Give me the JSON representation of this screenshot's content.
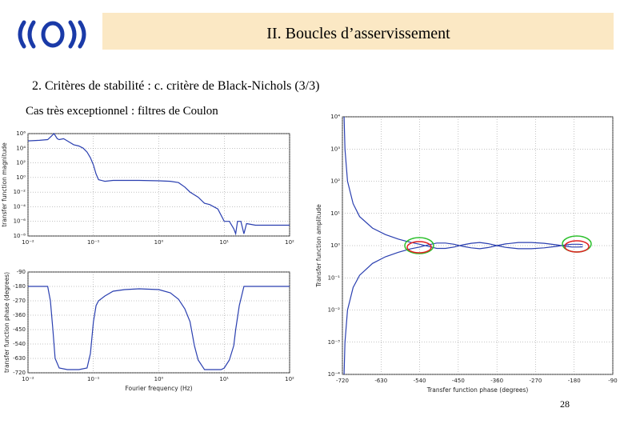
{
  "header": {
    "title": "II. Boucles d’asservissement"
  },
  "subtitle": "2. Critères de stabilité : c. critère de Black-Nichols (3/3)",
  "subheading": "Cas très exceptionnel : filtres de Coulon",
  "page_number": "28",
  "chart_data": [
    {
      "type": "line",
      "ylabel": "transfer function magnitude",
      "xscale": "log",
      "yscale": "log",
      "grid": true,
      "x": [
        0.01,
        0.015,
        0.02,
        0.023,
        0.025,
        0.028,
        0.03,
        0.035,
        0.04,
        0.05,
        0.06,
        0.07,
        0.08,
        0.09,
        0.1,
        0.11,
        0.12,
        0.15,
        0.2,
        0.3,
        0.5,
        1,
        1.5,
        2,
        2.5,
        3,
        4,
        5,
        6,
        8,
        10,
        12,
        14,
        15,
        16,
        18,
        20,
        22,
        30,
        50,
        100
      ],
      "series": [
        {
          "color": "#2a3fb0",
          "values": [
            100000,
            120000,
            150000,
            500000,
            1000000,
            200000,
            150000,
            200000,
            100000,
            30000,
            20000,
            10000,
            3000,
            500,
            50,
            3,
            0.5,
            0.3,
            0.4,
            0.4,
            0.4,
            0.35,
            0.3,
            0.2,
            0.05,
            0.01,
            0.002,
            0.0003,
            0.0002,
            5e-05,
            1e-06,
            1e-06,
            1e-07,
            2e-08,
            1e-06,
            1e-06,
            2e-08,
            5e-07,
            3e-07,
            3e-07,
            3e-07
          ]
        }
      ],
      "xlim": [
        0.01,
        100
      ],
      "xticks": [
        {
          "value": 0.01,
          "label": "10⁻²"
        },
        {
          "value": 0.1,
          "label": "10⁻¹"
        },
        {
          "value": 1,
          "label": "10⁰"
        },
        {
          "value": 10,
          "label": "10¹"
        },
        {
          "value": 100,
          "label": "10²"
        }
      ],
      "ylim": [
        1e-08,
        1000000
      ],
      "yticks": [
        {
          "value": 1e-08,
          "label": "10⁻⁸"
        },
        {
          "value": 1e-06,
          "label": "10⁻⁶"
        },
        {
          "value": 0.0001,
          "label": "10⁻⁴"
        },
        {
          "value": 0.01,
          "label": "10⁻²"
        },
        {
          "value": 1,
          "label": "10⁰"
        },
        {
          "value": 100,
          "label": "10²"
        },
        {
          "value": 10000,
          "label": "10⁴"
        },
        {
          "value": 1000000,
          "label": "10⁶"
        }
      ]
    },
    {
      "type": "line",
      "xlabel": "Fourier frequency (Hz)",
      "ylabel": "transfer function phase (degrees)",
      "xscale": "log",
      "grid": true,
      "x": [
        0.01,
        0.015,
        0.02,
        0.022,
        0.024,
        0.026,
        0.03,
        0.04,
        0.06,
        0.08,
        0.09,
        0.1,
        0.11,
        0.12,
        0.15,
        0.2,
        0.3,
        0.5,
        1,
        1.5,
        2,
        2.5,
        3,
        3.5,
        4,
        5,
        7,
        9,
        10,
        12,
        14,
        15,
        17,
        20,
        30,
        50,
        100
      ],
      "series": [
        {
          "color": "#2a3fb0",
          "values": [
            -180,
            -180,
            -180,
            -270,
            -450,
            -630,
            -690,
            -700,
            -700,
            -690,
            -600,
            -400,
            -300,
            -270,
            -240,
            -210,
            -200,
            -195,
            -200,
            -220,
            -260,
            -320,
            -400,
            -550,
            -640,
            -700,
            -700,
            -700,
            -690,
            -640,
            -550,
            -450,
            -300,
            -180,
            -180,
            -180,
            -180
          ]
        }
      ],
      "xlim": [
        0.01,
        100
      ],
      "xticks": [
        {
          "value": 0.01,
          "label": "10⁻²"
        },
        {
          "value": 0.1,
          "label": "10⁻¹"
        },
        {
          "value": 1,
          "label": "10⁰"
        },
        {
          "value": 10,
          "label": "10¹"
        },
        {
          "value": 100,
          "label": "10²"
        }
      ],
      "ylim": [
        -720,
        -90
      ],
      "yticks": [
        -720,
        -630,
        -540,
        -450,
        -360,
        -270,
        -180,
        -90
      ]
    },
    {
      "type": "line",
      "xlabel": "Transfer function phase (degrees)",
      "ylabel": "Transfer function amplitude",
      "yscale": "log",
      "grid": true,
      "x": [
        -716,
        -714,
        -708,
        -695,
        -680,
        -650,
        -620,
        -590,
        -560,
        -540,
        -520,
        -500,
        -480,
        -460,
        -440,
        -420,
        -400,
        -380,
        -360,
        -340,
        -310,
        -280,
        -250,
        -220,
        -200,
        -185,
        -170,
        -160
      ],
      "series": [
        {
          "color": "#2a3fb0",
          "values": [
            10000,
            1000,
            100,
            20,
            8,
            3.5,
            2.2,
            1.6,
            1.25,
            1.1,
            0.95,
            0.82,
            0.82,
            0.9,
            1.05,
            1.18,
            1.25,
            1.15,
            1,
            0.88,
            0.8,
            0.8,
            0.85,
            0.95,
            1.05,
            1.1,
            1.1,
            1.08
          ]
        },
        {
          "color": "#2a3fb0",
          "values": [
            0.0001,
            0.001,
            0.01,
            0.05,
            0.12,
            0.28,
            0.45,
            0.62,
            0.8,
            0.9,
            1.05,
            1.2,
            1.2,
            1.1,
            0.95,
            0.85,
            0.8,
            0.87,
            1,
            1.13,
            1.25,
            1.25,
            1.18,
            1.05,
            0.95,
            0.9,
            0.9,
            0.92
          ]
        }
      ],
      "xlim": [
        -720,
        -90
      ],
      "xticks": [
        -720,
        -630,
        -540,
        -450,
        -360,
        -270,
        -180,
        -90
      ],
      "ylim": [
        0.0001,
        10000
      ],
      "yticks": [
        {
          "value": 0.0001,
          "label": "10⁻⁴"
        },
        {
          "value": 0.001,
          "label": "10⁻³"
        },
        {
          "value": 0.01,
          "label": "10⁻²"
        },
        {
          "value": 0.1,
          "label": "10⁻¹"
        },
        {
          "value": 1,
          "label": "10⁰"
        },
        {
          "value": 10,
          "label": "10¹"
        },
        {
          "value": 100,
          "label": "10²"
        },
        {
          "value": 1000,
          "label": "10³"
        },
        {
          "value": 10000,
          "label": "10⁴"
        }
      ]
    }
  ]
}
